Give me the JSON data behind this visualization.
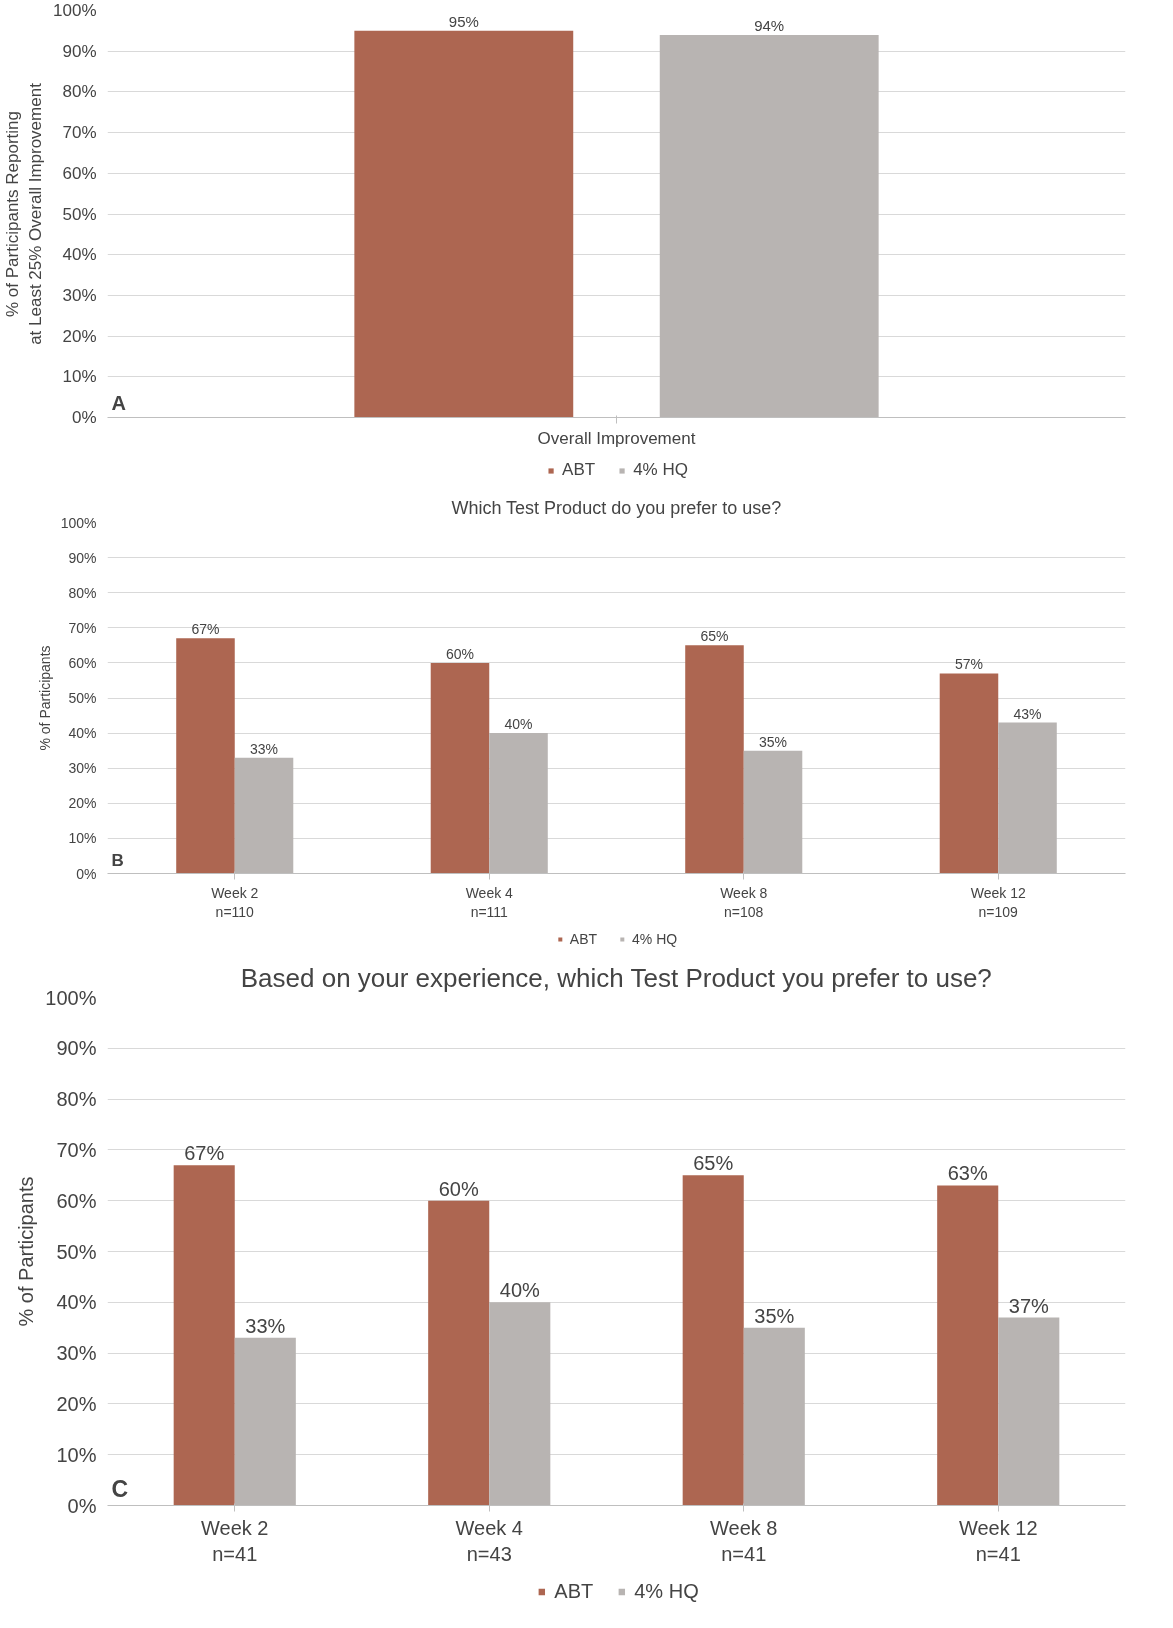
{
  "chart_data": [
    {
      "type": "bar",
      "ylabel": "% of Participants Reporting at Least 25% Overall Improvement",
      "categories": [
        "Overall Improvement"
      ],
      "series": [
        {
          "name": "ABT",
          "color": "#ad6651",
          "values": [
            95
          ],
          "value_labels": [
            "95%"
          ]
        },
        {
          "name": "4% HQ",
          "color": "#b8b4b2",
          "values": [
            94
          ],
          "value_labels": [
            "94%"
          ]
        }
      ],
      "ylim": [
        0,
        100
      ],
      "yticks": [
        {
          "value": 0,
          "label": "0%"
        },
        {
          "value": 10,
          "label": "10%"
        },
        {
          "value": 20,
          "label": "20%"
        },
        {
          "value": 30,
          "label": "30%"
        },
        {
          "value": 40,
          "label": "40%"
        },
        {
          "value": 50,
          "label": "50%"
        },
        {
          "value": 60,
          "label": "60%"
        },
        {
          "value": 70,
          "label": "70%"
        },
        {
          "value": 80,
          "label": "80%"
        },
        {
          "value": 90,
          "label": "90%"
        },
        {
          "value": 100,
          "label": "100%"
        }
      ],
      "grid": "y",
      "legend": "bottom",
      "annotations": [
        "A"
      ]
    },
    {
      "type": "bar",
      "title": "Which Test Product do you prefer to use?",
      "ylabel": "% of Participants",
      "categories": [
        "Week 2\nn=110",
        "Week 4\nn=111",
        "Week 8\nn=108",
        "Week 12\nn=109"
      ],
      "series": [
        {
          "name": "ABT",
          "color": "#ad6651",
          "values": [
            67,
            60,
            65,
            57
          ],
          "value_labels": [
            "67%",
            "60%",
            "65%",
            "57%"
          ]
        },
        {
          "name": "4% HQ",
          "color": "#b8b4b2",
          "values": [
            33,
            40,
            35,
            43
          ],
          "value_labels": [
            "33%",
            "40%",
            "35%",
            "43%"
          ]
        }
      ],
      "ylim": [
        0,
        100
      ],
      "yticks": [
        {
          "value": 0,
          "label": "0%"
        },
        {
          "value": 10,
          "label": "10%"
        },
        {
          "value": 20,
          "label": "20%"
        },
        {
          "value": 30,
          "label": "30%"
        },
        {
          "value": 40,
          "label": "40%"
        },
        {
          "value": 50,
          "label": "50%"
        },
        {
          "value": 60,
          "label": "60%"
        },
        {
          "value": 70,
          "label": "70%"
        },
        {
          "value": 80,
          "label": "80%"
        },
        {
          "value": 90,
          "label": "90%"
        },
        {
          "value": 100,
          "label": "100%"
        }
      ],
      "grid": "y",
      "legend": "bottom",
      "annotations": [
        "B"
      ]
    },
    {
      "type": "bar",
      "title": "Based on your experience, which Test Product you prefer to use?",
      "ylabel": "% of Participants",
      "categories": [
        "Week 2\nn=41",
        "Week 4\nn=43",
        "Week 8\nn=41",
        "Week 12\nn=41"
      ],
      "series": [
        {
          "name": "ABT",
          "color": "#ad6651",
          "values": [
            67,
            60,
            65,
            63
          ],
          "value_labels": [
            "67%",
            "60%",
            "65%",
            "63%"
          ]
        },
        {
          "name": "4% HQ",
          "color": "#b8b4b2",
          "values": [
            33,
            40,
            35,
            37
          ],
          "value_labels": [
            "33%",
            "40%",
            "35%",
            "37%"
          ]
        }
      ],
      "ylim": [
        0,
        100
      ],
      "yticks": [
        {
          "value": 0,
          "label": "0%"
        },
        {
          "value": 10,
          "label": "10%"
        },
        {
          "value": 20,
          "label": "20%"
        },
        {
          "value": 30,
          "label": "30%"
        },
        {
          "value": 40,
          "label": "40%"
        },
        {
          "value": 50,
          "label": "50%"
        },
        {
          "value": 60,
          "label": "60%"
        },
        {
          "value": 70,
          "label": "70%"
        },
        {
          "value": 80,
          "label": "80%"
        },
        {
          "value": 90,
          "label": "90%"
        },
        {
          "value": 100,
          "label": "100%"
        }
      ],
      "grid": "y",
      "legend": "bottom",
      "annotations": [
        "C"
      ]
    }
  ]
}
